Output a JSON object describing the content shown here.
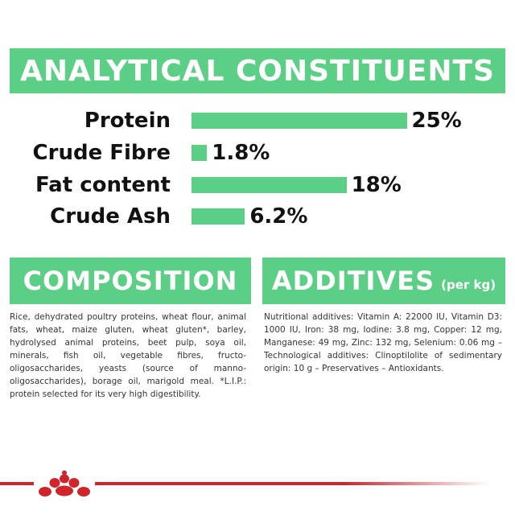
{
  "analytical": {
    "title": "ANALYTICAL CONSTITUENTS",
    "rows": [
      {
        "label": "Protein",
        "value": "25%",
        "percent": 25
      },
      {
        "label": "Crude Fibre",
        "value": "1.8%",
        "percent": 1.8
      },
      {
        "label": "Fat content",
        "value": "18%",
        "percent": 18
      },
      {
        "label": "Crude Ash",
        "value": "6.2%",
        "percent": 6.2
      }
    ]
  },
  "composition": {
    "title": "COMPOSITION",
    "text": "Rice, dehydrated poultry proteins, wheat flour, animal fats, wheat, maize gluten, wheat gluten*, barley, hydrolysed animal proteins, beet pulp, soya oil, minerals, fish oil, vegetable fibres, fructo-oligosaccharides, yeasts (source of manno-oligosaccharides), borage oil, marigold meal. *L.I.P.: protein selected for its very high digestibility."
  },
  "additives": {
    "title": "ADDITIVES",
    "subtitle": "(per kg)",
    "text": "Nutritional additives: Vitamin A: 22000 IU, Vitamin D3: 1000 IU, Iron: 38 mg, Iodine: 3.8 mg, Copper: 12 mg, Manganese: 49 mg, Zinc: 132 mg, Selenium: 0.06 mg – Technological additives: Clinoptilolite of sedimentary origin: 10 g – Preservatives – Antioxidants."
  },
  "colors": {
    "accent": "#5ccf86",
    "brand_red": "#d0232a"
  },
  "footer": {
    "logo_icon": "royal-canin-crown-icon"
  }
}
